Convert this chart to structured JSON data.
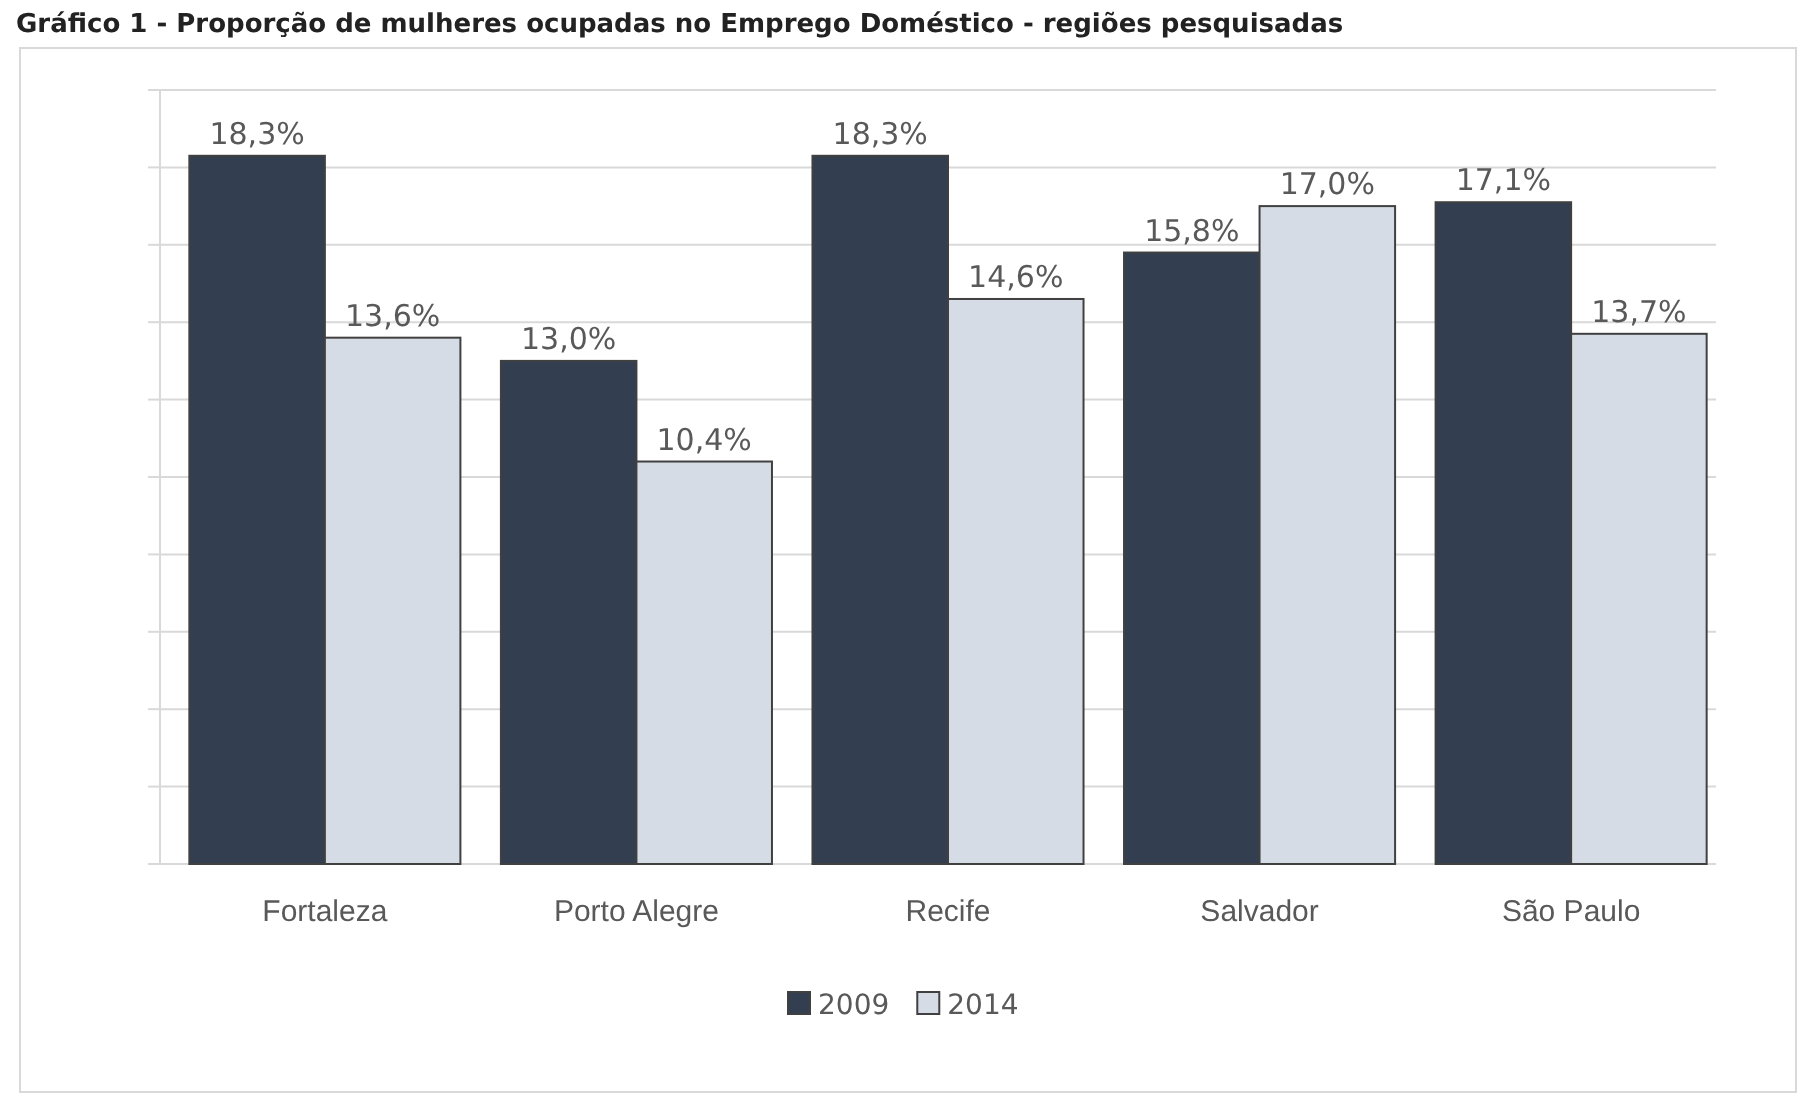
{
  "chart_data": {
    "type": "bar",
    "title": "Gráfico 1 - Proporção de mulheres ocupadas no Emprego Doméstico - regiões pesquisadas",
    "categories": [
      "Fortaleza",
      "Porto Alegre",
      "Recife",
      "Salvador",
      "São Paulo"
    ],
    "series": [
      {
        "name": "2009",
        "color": "#333f50",
        "values": [
          18.3,
          13.0,
          18.3,
          15.8,
          17.1
        ],
        "value_labels": [
          "18,3%",
          "13,0%",
          "18,3%",
          "15,8%",
          "17,1%"
        ]
      },
      {
        "name": "2014",
        "color": "#d6dce5",
        "values": [
          13.6,
          10.4,
          14.6,
          17.0,
          13.7
        ],
        "value_labels": [
          "13,6%",
          "10,4%",
          "14,6%",
          "17,0%",
          "13,7%"
        ]
      }
    ],
    "ylim": [
      0,
      20
    ],
    "yticks": [
      {
        "value": 0,
        "label": null
      },
      {
        "value": 2,
        "label": null
      },
      {
        "value": 4,
        "label": null
      },
      {
        "value": 6,
        "label": null
      },
      {
        "value": 8,
        "label": null
      },
      {
        "value": 10,
        "label": null
      },
      {
        "value": 12,
        "label": null
      },
      {
        "value": 14,
        "label": null
      },
      {
        "value": 16,
        "label": null
      },
      {
        "value": 18,
        "label": null
      },
      {
        "value": 20,
        "label": null
      }
    ],
    "tick_labels": "x",
    "grid": "y",
    "legend": "bottom"
  }
}
